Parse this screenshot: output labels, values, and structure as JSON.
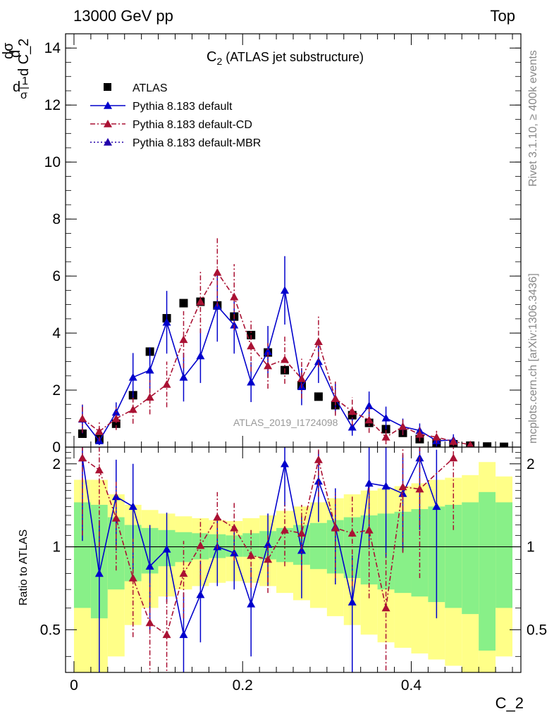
{
  "header": {
    "left": "13000 GeV pp",
    "right": "Top"
  },
  "side_labels": {
    "rivet": "Rivet 3.1.10, ≥ 400k events",
    "mcplots": "mcplots.cern.ch [arXiv:1306.3436]"
  },
  "chart_data": {
    "type": "scatter",
    "title": "C_2 (ATLAS jet substructure)",
    "title_main": "C",
    "title_sub": "2",
    "title_rest": " (ATLAS jet substructure)",
    "watermark": "ATLAS_2019_I1724098",
    "xlabel": "C_2",
    "ylabel_main": "d C_2",
    "xlim": [
      -0.01,
      0.53
    ],
    "main_ylim": [
      0,
      14.5
    ],
    "main_yticks": [
      0,
      2,
      4,
      6,
      8,
      10,
      12,
      14
    ],
    "ratio_ylabel": "Ratio to ATLAS",
    "ratio_ylim": [
      0.35,
      2.3
    ],
    "ratio_yticks": [
      0.5,
      1,
      2
    ],
    "xticks": [
      0,
      0.2,
      0.4
    ],
    "legend_position": "top-left",
    "x": [
      0.01,
      0.03,
      0.05,
      0.07,
      0.09,
      0.11,
      0.13,
      0.15,
      0.17,
      0.19,
      0.21,
      0.23,
      0.25,
      0.27,
      0.29,
      0.31,
      0.33,
      0.35,
      0.37,
      0.39,
      0.41,
      0.43,
      0.45,
      0.47,
      0.49,
      0.51
    ],
    "bin_edges": [
      0,
      0.02,
      0.04,
      0.06,
      0.08,
      0.1,
      0.12,
      0.14,
      0.16,
      0.18,
      0.2,
      0.22,
      0.24,
      0.26,
      0.28,
      0.3,
      0.32,
      0.34,
      0.36,
      0.38,
      0.4,
      0.42,
      0.44,
      0.46,
      0.48,
      0.5,
      0.52
    ],
    "series": [
      {
        "name": "ATLAS",
        "color": "#000000",
        "marker": "square",
        "values": [
          0.47,
          0.28,
          0.82,
          1.82,
          3.35,
          4.52,
          5.05,
          5.1,
          4.97,
          4.58,
          3.93,
          3.32,
          2.7,
          2.17,
          1.77,
          1.47,
          1.12,
          0.85,
          0.63,
          0.5,
          0.28,
          0.15,
          0.1,
          0.05,
          0.02,
          0.01
        ]
      },
      {
        "name": "Pythia 8.183 default",
        "color": "#0000cc",
        "marker": "triangle",
        "line": "solid",
        "x": [
          0.01,
          0.03,
          0.05,
          0.07,
          0.09,
          0.11,
          0.13,
          0.15,
          0.17,
          0.19,
          0.21,
          0.23,
          0.25,
          0.27,
          0.29,
          0.31,
          0.33,
          0.35,
          0.37,
          0.39,
          0.41,
          0.43,
          0.45
        ],
        "values": [
          0.98,
          0.22,
          1.22,
          2.45,
          2.7,
          4.38,
          2.45,
          3.2,
          4.95,
          4.28,
          2.28,
          3.35,
          5.5,
          2.12,
          3.0,
          1.7,
          0.7,
          1.45,
          1.02,
          0.72,
          0.58,
          0.22,
          0.25
        ],
        "errors": [
          0.5,
          0.15,
          0.35,
          0.85,
          0.8,
          1.1,
          0.85,
          0.95,
          1.25,
          1.0,
          0.7,
          0.9,
          1.2,
          0.65,
          0.75,
          0.55,
          0.3,
          0.5,
          0.4,
          0.28,
          0.25,
          0.2,
          0.2
        ]
      },
      {
        "name": "Pythia 8.183 default-CD",
        "color": "#aa1133",
        "marker": "triangle",
        "line": "dash-dot",
        "x": [
          0.01,
          0.03,
          0.05,
          0.07,
          0.09,
          0.11,
          0.13,
          0.15,
          0.17,
          0.19,
          0.21,
          0.23,
          0.25,
          0.27,
          0.29,
          0.31,
          0.33,
          0.35,
          0.37,
          0.39,
          0.41,
          0.43,
          0.45,
          0.47
        ],
        "values": [
          1.0,
          0.55,
          1.0,
          1.32,
          1.75,
          2.2,
          3.77,
          5.1,
          6.13,
          5.27,
          3.55,
          2.85,
          3.07,
          2.4,
          3.7,
          1.7,
          1.25,
          0.95,
          0.35,
          0.72,
          0.45,
          0.35,
          0.2,
          0.08
        ],
        "errors": [
          0.5,
          0.35,
          0.4,
          0.5,
          0.6,
          0.8,
          1.0,
          1.1,
          1.2,
          1.15,
          0.9,
          0.8,
          0.85,
          0.7,
          0.9,
          0.6,
          0.5,
          0.45,
          0.25,
          0.3,
          0.25,
          0.22,
          0.15,
          0.08
        ]
      },
      {
        "name": "Pythia 8.183 default-MBR",
        "color": "#2200aa",
        "marker": "triangle",
        "line": "dotted",
        "values": []
      }
    ],
    "ratio_series": [
      {
        "name": "Pythia 8.183 default",
        "x": [
          0.01,
          0.03,
          0.05,
          0.07,
          0.09,
          0.11,
          0.13,
          0.15,
          0.17,
          0.19,
          0.21,
          0.23,
          0.25,
          0.27,
          0.29,
          0.31,
          0.33,
          0.35,
          0.37,
          0.39,
          0.41,
          0.43
        ],
        "values": [
          2.1,
          0.8,
          1.52,
          1.4,
          0.85,
          0.98,
          0.48,
          0.67,
          1.0,
          0.95,
          0.62,
          1.02,
          2.0,
          0.97,
          1.73,
          1.18,
          0.63,
          1.7,
          1.66,
          1.56,
          2.1,
          1.4
        ],
        "err_lo": [
          1.05,
          0.45,
          0.55,
          0.6,
          0.35,
          0.35,
          0.2,
          0.22,
          0.28,
          0.25,
          0.22,
          0.3,
          0.6,
          0.32,
          0.5,
          0.45,
          0.3,
          0.7,
          0.75,
          0.6,
          0.95,
          0.85
        ],
        "err_hi": [
          1.05,
          0.45,
          0.55,
          0.6,
          0.35,
          0.35,
          0.2,
          0.22,
          0.28,
          0.25,
          0.22,
          0.3,
          0.6,
          0.32,
          0.5,
          0.45,
          0.3,
          0.7,
          0.75,
          0.6,
          0.95,
          0.85
        ]
      },
      {
        "name": "Pythia 8.183 default-CD",
        "x": [
          0.01,
          0.03,
          0.05,
          0.07,
          0.09,
          0.11,
          0.13,
          0.15,
          0.17,
          0.19,
          0.21,
          0.23,
          0.25,
          0.27,
          0.29,
          0.31,
          0.33,
          0.35,
          0.37,
          0.39,
          0.41,
          0.45
        ],
        "values": [
          2.1,
          1.9,
          1.27,
          0.77,
          0.53,
          0.48,
          0.8,
          1.01,
          1.28,
          1.17,
          0.93,
          0.9,
          1.15,
          1.12,
          2.07,
          1.17,
          1.12,
          1.15,
          0.6,
          1.65,
          1.62,
          2.1
        ],
        "err_lo": [
          1.0,
          0.9,
          0.45,
          0.3,
          0.22,
          0.2,
          0.25,
          0.25,
          0.3,
          0.28,
          0.22,
          0.22,
          0.3,
          0.3,
          0.55,
          0.4,
          0.4,
          0.5,
          0.35,
          0.7,
          0.85,
          0.95
        ],
        "err_hi": [
          1.0,
          0.9,
          0.45,
          0.3,
          0.22,
          0.2,
          0.25,
          0.25,
          0.3,
          0.28,
          0.22,
          0.22,
          0.3,
          0.3,
          0.55,
          0.4,
          0.4,
          0.5,
          0.35,
          0.7,
          0.85,
          0.95
        ]
      }
    ],
    "ratio_bands": {
      "inner_lo": [
        0.6,
        0.55,
        0.7,
        0.75,
        0.8,
        0.85,
        0.88,
        0.9,
        0.91,
        0.92,
        0.92,
        0.9,
        0.88,
        0.86,
        0.83,
        0.8,
        0.77,
        0.73,
        0.7,
        0.68,
        0.66,
        0.63,
        0.6,
        0.57,
        0.42,
        0.6
      ],
      "inner_hi": [
        1.45,
        1.42,
        1.28,
        1.2,
        1.17,
        1.15,
        1.13,
        1.12,
        1.11,
        1.1,
        1.12,
        1.14,
        1.17,
        1.2,
        1.22,
        1.25,
        1.28,
        1.3,
        1.32,
        1.34,
        1.37,
        1.4,
        1.42,
        1.45,
        1.58,
        1.45
      ],
      "outer_lo": [
        0.3,
        0.25,
        0.4,
        0.52,
        0.6,
        0.66,
        0.7,
        0.72,
        0.74,
        0.75,
        0.74,
        0.72,
        0.68,
        0.64,
        0.6,
        0.56,
        0.52,
        0.48,
        0.45,
        0.43,
        0.41,
        0.39,
        0.37,
        0.35,
        0.3,
        0.4
      ],
      "outer_hi": [
        1.75,
        1.75,
        1.55,
        1.42,
        1.36,
        1.32,
        1.29,
        1.27,
        1.25,
        1.24,
        1.27,
        1.3,
        1.35,
        1.4,
        1.45,
        1.5,
        1.55,
        1.6,
        1.63,
        1.66,
        1.7,
        1.75,
        1.78,
        1.82,
        2.03,
        1.8
      ]
    }
  }
}
